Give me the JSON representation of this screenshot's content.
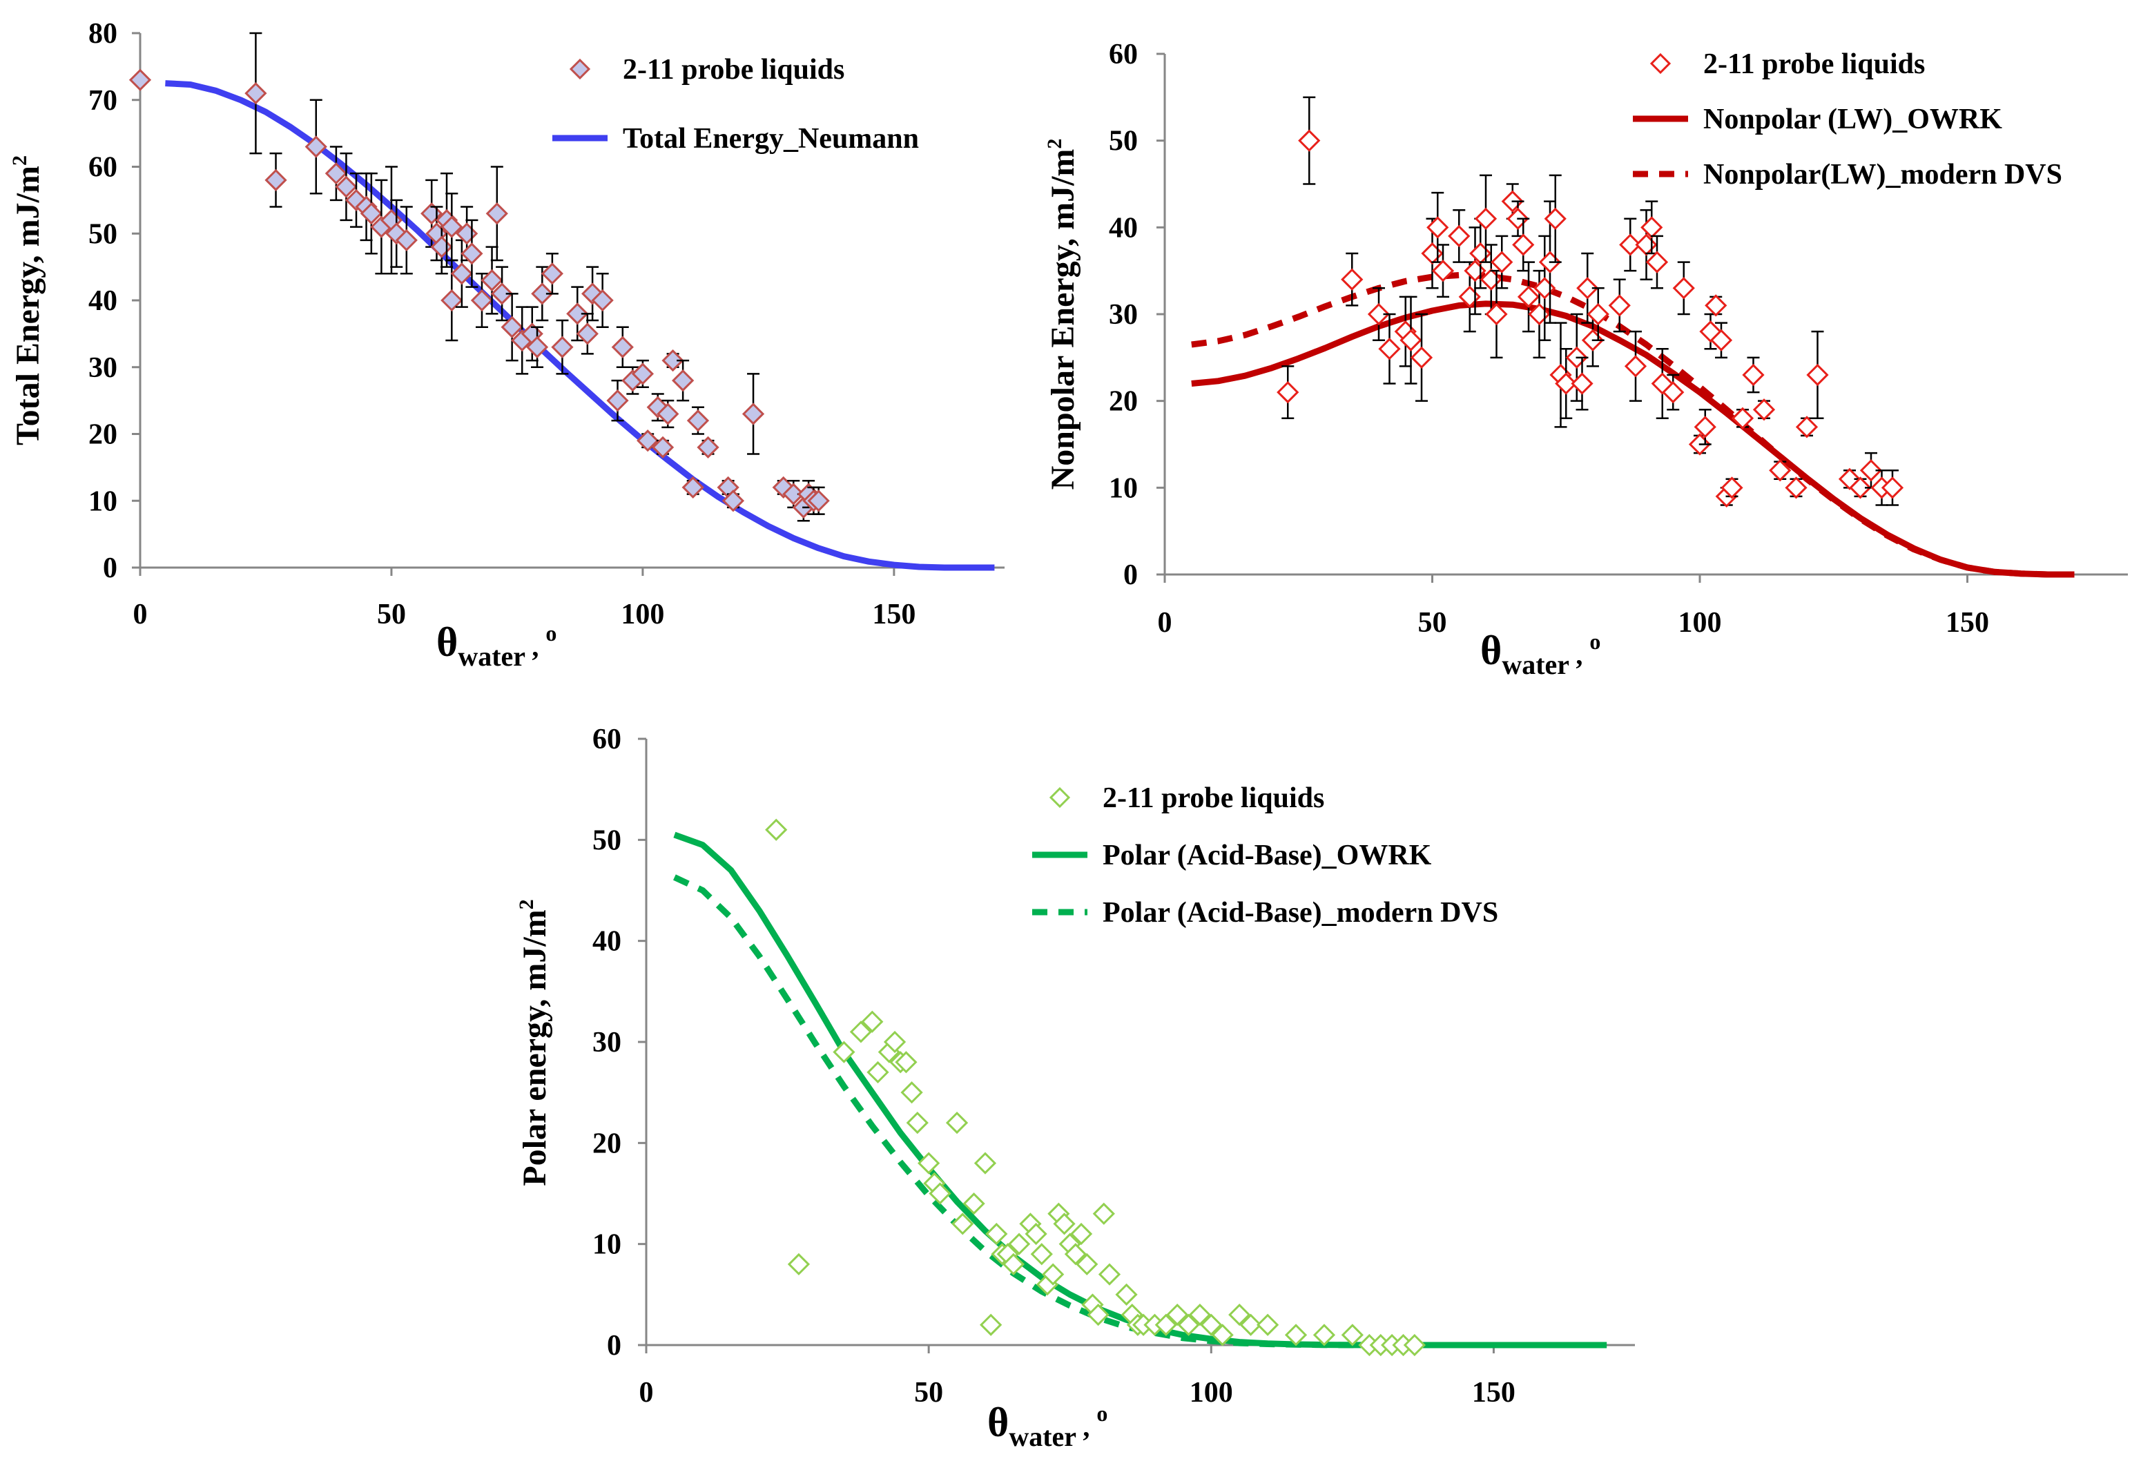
{
  "chart_data": [
    {
      "id": "total",
      "type": "scatter",
      "ylabel": "Total Energy, mJ/m",
      "ylabel_sup": "2",
      "xlabel": "θ",
      "xlabel_sub": "water",
      "xlabel_unit": "o",
      "xlim": [
        0,
        172
      ],
      "ylim": [
        0,
        80
      ],
      "xticks": [
        0,
        50,
        100,
        150
      ],
      "yticks": [
        0,
        10,
        20,
        30,
        40,
        50,
        60,
        70,
        80
      ],
      "grid": false,
      "legend_position": "top-right",
      "colors": {
        "marker_edge": "#c0504d",
        "marker_fill": "#c3c6ea",
        "line": "#3f3ff0",
        "errorbar": "#000000"
      },
      "series": [
        {
          "name": "2-11 probe liquids",
          "kind": "scatter",
          "x": [
            0,
            23,
            27,
            35,
            39,
            41,
            43,
            45,
            46,
            48,
            50,
            51,
            53,
            58,
            59,
            60,
            61,
            62,
            62,
            64,
            65,
            66,
            68,
            70,
            71,
            72,
            74,
            76,
            78,
            79,
            80,
            82,
            84,
            87,
            89,
            90,
            92,
            95,
            96,
            98,
            100,
            101,
            103,
            104,
            105,
            106,
            108,
            110,
            111,
            113,
            117,
            118,
            122,
            128,
            130,
            132,
            133,
            134,
            135
          ],
          "y": [
            73,
            71,
            58,
            63,
            59,
            57,
            55,
            54,
            53,
            51,
            52,
            50,
            49,
            53,
            50,
            48,
            52,
            51,
            40,
            44,
            50,
            47,
            40,
            43,
            53,
            41,
            36,
            34,
            35,
            33,
            41,
            44,
            33,
            38,
            35,
            41,
            40,
            25,
            33,
            28,
            29,
            19,
            24,
            18,
            23,
            31,
            28,
            12,
            22,
            18,
            12,
            10,
            23,
            12,
            11,
            9,
            11,
            10,
            10
          ],
          "err": [
            0,
            9,
            4,
            7,
            4,
            5,
            4,
            5,
            6,
            7,
            8,
            5,
            5,
            5,
            4,
            4,
            7,
            5,
            6,
            5,
            4,
            5,
            4,
            5,
            7,
            4,
            5,
            5,
            4,
            3,
            4,
            3,
            4,
            4,
            3,
            4,
            4,
            3,
            3,
            2,
            2,
            1,
            2,
            1,
            2,
            1,
            3,
            1,
            2,
            1,
            1,
            1,
            6,
            1,
            2,
            2,
            2,
            2,
            2
          ]
        },
        {
          "name": "Total Energy_Neumann",
          "kind": "line",
          "style": "solid",
          "x": [
            5,
            10,
            15,
            20,
            25,
            30,
            35,
            40,
            45,
            50,
            55,
            60,
            65,
            70,
            75,
            80,
            85,
            90,
            95,
            100,
            105,
            110,
            115,
            120,
            125,
            130,
            135,
            140,
            145,
            150,
            155,
            160,
            165,
            170
          ],
          "y": [
            72.5,
            72.3,
            71.4,
            70.0,
            68.2,
            65.9,
            63.3,
            60.4,
            57.3,
            54.0,
            50.6,
            47.0,
            43.4,
            39.8,
            36.2,
            32.6,
            29.1,
            25.7,
            22.3,
            19.1,
            16.1,
            13.2,
            10.6,
            8.3,
            6.2,
            4.4,
            2.9,
            1.7,
            0.9,
            0.4,
            0.1,
            0.0,
            0.0,
            0.0
          ]
        }
      ]
    },
    {
      "id": "nonpolar",
      "type": "scatter",
      "ylabel": "Nonpolar Energy, mJ/m",
      "ylabel_sup": "2",
      "xlabel": "θ",
      "xlabel_sub": "water",
      "xlabel_unit": "o",
      "xlim": [
        0,
        180
      ],
      "ylim": [
        0,
        60
      ],
      "xticks": [
        0,
        50,
        100,
        150
      ],
      "yticks": [
        0,
        10,
        20,
        30,
        40,
        50,
        60
      ],
      "grid": false,
      "legend_position": "top-right",
      "colors": {
        "marker_edge": "#e8201a",
        "marker_fill": "#ffffff",
        "line": "#c00000",
        "errorbar": "#000000"
      },
      "series": [
        {
          "name": "2-11 probe liquids",
          "kind": "scatter",
          "x": [
            23,
            27,
            35,
            40,
            42,
            45,
            46,
            48,
            50,
            51,
            52,
            55,
            57,
            58,
            59,
            60,
            61,
            62,
            63,
            65,
            66,
            67,
            68,
            70,
            71,
            72,
            73,
            74,
            75,
            77,
            78,
            79,
            80,
            81,
            85,
            87,
            88,
            90,
            91,
            92,
            93,
            95,
            97,
            100,
            101,
            102,
            103,
            104,
            105,
            106,
            108,
            110,
            112,
            115,
            118,
            120,
            122,
            128,
            130,
            132,
            134,
            136
          ],
          "y": [
            21,
            50,
            34,
            30,
            26,
            28,
            27,
            25,
            37,
            40,
            35,
            39,
            32,
            35,
            37,
            41,
            34,
            30,
            36,
            43,
            41,
            38,
            32,
            30,
            33,
            36,
            41,
            23,
            22,
            25,
            22,
            33,
            27,
            30,
            31,
            38,
            24,
            38,
            40,
            36,
            22,
            21,
            33,
            15,
            17,
            28,
            31,
            27,
            9,
            10,
            18,
            23,
            19,
            12,
            10,
            17,
            23,
            11,
            10,
            12,
            10,
            10
          ],
          "err": [
            3,
            5,
            3,
            3,
            4,
            4,
            5,
            5,
            4,
            4,
            3,
            3,
            4,
            5,
            4,
            5,
            4,
            5,
            3,
            2,
            2,
            3,
            4,
            5,
            6,
            7,
            5,
            6,
            4,
            5,
            3,
            4,
            3,
            3,
            3,
            3,
            4,
            4,
            3,
            3,
            4,
            2,
            3,
            1,
            2,
            2,
            1,
            2,
            1,
            1,
            1,
            2,
            1,
            1,
            1,
            1,
            5,
            1,
            1,
            2,
            2,
            2
          ]
        },
        {
          "name": "Nonpolar (LW)_OWRK",
          "kind": "line",
          "style": "solid",
          "x": [
            5,
            10,
            15,
            20,
            25,
            30,
            35,
            40,
            45,
            50,
            55,
            60,
            65,
            70,
            75,
            80,
            85,
            90,
            95,
            100,
            105,
            110,
            115,
            120,
            125,
            130,
            135,
            140,
            145,
            150,
            155,
            160,
            165,
            170
          ],
          "y": [
            22.0,
            22.3,
            22.9,
            23.8,
            24.9,
            26.1,
            27.4,
            28.6,
            29.6,
            30.4,
            31.0,
            31.2,
            31.1,
            30.6,
            29.8,
            28.6,
            27.0,
            25.3,
            23.2,
            21.0,
            18.6,
            16.1,
            13.6,
            11.1,
            8.7,
            6.5,
            4.6,
            3.0,
            1.7,
            0.8,
            0.3,
            0.1,
            0.0,
            0.0
          ]
        },
        {
          "name": "Nonpolar(LW)_modern DVS",
          "kind": "line",
          "style": "dashed",
          "x": [
            5,
            10,
            15,
            20,
            25,
            30,
            35,
            40,
            45,
            50,
            55,
            60,
            65,
            70,
            75,
            80,
            85,
            90,
            95,
            100,
            105,
            110,
            115,
            120,
            125,
            130,
            135,
            140,
            145,
            150,
            155,
            160,
            165,
            170
          ],
          "y": [
            26.5,
            26.9,
            27.6,
            28.6,
            29.7,
            30.9,
            32.0,
            33.0,
            33.8,
            34.3,
            34.5,
            34.4,
            34.0,
            33.2,
            32.0,
            30.5,
            28.6,
            26.5,
            24.1,
            21.6,
            19.0,
            16.3,
            13.6,
            11.0,
            8.6,
            6.4,
            4.5,
            2.9,
            1.7,
            0.8,
            0.3,
            0.1,
            0.0,
            0.0
          ]
        }
      ]
    },
    {
      "id": "polar",
      "type": "scatter",
      "ylabel": "Polar energy, mJ/m",
      "ylabel_sup": "2",
      "xlabel": "θ",
      "xlabel_sub": "water",
      "xlabel_unit": "o",
      "xlim": [
        0,
        175
      ],
      "ylim": [
        0,
        60
      ],
      "xticks": [
        0,
        50,
        100,
        150
      ],
      "yticks": [
        0,
        10,
        20,
        30,
        40,
        50,
        60
      ],
      "grid": false,
      "legend_position": "top-right",
      "colors": {
        "marker_edge": "#92d050",
        "marker_fill": "#ffffff",
        "line": "#00b050",
        "errorbar": "#000000"
      },
      "series": [
        {
          "name": "2-11 probe liquids",
          "kind": "scatter",
          "x": [
            23,
            27,
            35,
            38,
            40,
            41,
            43,
            44,
            45,
            46,
            47,
            48,
            50,
            51,
            52,
            55,
            56,
            58,
            60,
            61,
            62,
            63,
            64,
            65,
            66,
            68,
            69,
            70,
            71,
            72,
            73,
            74,
            75,
            76,
            77,
            78,
            79,
            80,
            81,
            82,
            85,
            86,
            87,
            88,
            90,
            92,
            94,
            96,
            98,
            100,
            102,
            105,
            107,
            110,
            115,
            120,
            125,
            128,
            130,
            132,
            134,
            136
          ],
          "y": [
            51,
            8,
            29,
            31,
            32,
            27,
            29,
            30,
            28,
            28,
            25,
            22,
            18,
            16,
            15,
            22,
            12,
            14,
            18,
            2,
            11,
            9,
            9,
            8,
            10,
            12,
            11,
            9,
            6,
            7,
            13,
            12,
            10,
            9,
            11,
            8,
            4,
            3,
            13,
            7,
            5,
            3,
            2,
            2,
            2,
            2,
            3,
            2,
            3,
            2,
            1,
            3,
            2,
            2,
            1,
            1,
            1,
            0,
            0,
            0,
            0,
            0
          ]
        },
        {
          "name": "Polar (Acid-Base)_OWRK",
          "kind": "line",
          "style": "solid",
          "x": [
            5,
            10,
            15,
            20,
            25,
            30,
            35,
            40,
            45,
            50,
            55,
            60,
            65,
            70,
            75,
            80,
            85,
            90,
            95,
            100,
            105,
            110,
            115,
            120,
            125,
            130,
            135,
            140,
            145,
            150,
            155,
            160,
            165,
            170
          ],
          "y": [
            50.5,
            49.5,
            47.0,
            43.0,
            38.5,
            33.8,
            29.0,
            25.0,
            21.0,
            17.5,
            14.2,
            11.3,
            8.8,
            6.7,
            5.0,
            3.6,
            2.5,
            1.6,
            1.0,
            0.6,
            0.3,
            0.15,
            0.07,
            0.03,
            0.01,
            0.0,
            0.0,
            0.0,
            0.0,
            0.0,
            0.0,
            0.0,
            0.0,
            0.0
          ]
        },
        {
          "name": "Polar (Acid-Base)_modern DVS",
          "kind": "line",
          "style": "dashed",
          "x": [
            5,
            10,
            15,
            20,
            25,
            30,
            35,
            40,
            45,
            50,
            55,
            60,
            65,
            70,
            75,
            80,
            85,
            90,
            95,
            100,
            105,
            110,
            115,
            120,
            125,
            130,
            135,
            140,
            145,
            150,
            155,
            160,
            165,
            170
          ],
          "y": [
            46.3,
            45.0,
            42.3,
            38.5,
            34.2,
            29.8,
            25.6,
            21.7,
            18.1,
            14.8,
            11.9,
            9.3,
            7.1,
            5.3,
            3.9,
            2.7,
            1.8,
            1.2,
            0.7,
            0.4,
            0.2,
            0.1,
            0.05,
            0.02,
            0.0,
            0.0,
            0.0,
            0.0,
            0.0,
            0.0,
            0.0,
            0.0,
            0.0,
            0.0
          ]
        }
      ]
    }
  ]
}
